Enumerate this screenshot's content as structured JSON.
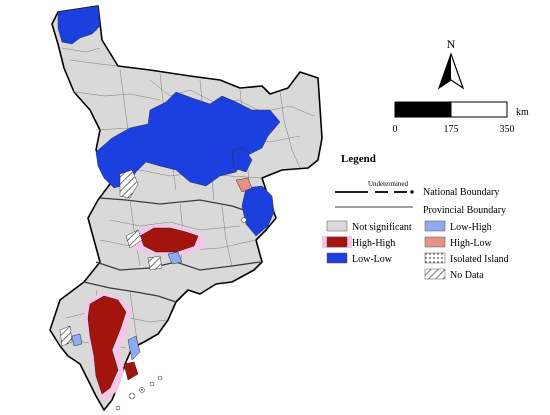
{
  "north_arrow": {
    "label": "N"
  },
  "scale_bar": {
    "unit": "km",
    "ticks": [
      "0",
      "175",
      "350"
    ]
  },
  "legend": {
    "title": "Legend",
    "boundary_note": "Undetermined",
    "national_boundary": "National Boundary",
    "provincial_boundary": "Provincial Boundary",
    "categories": [
      {
        "label": "Not significant",
        "color": "#d9d9d9",
        "pattern": "solid"
      },
      {
        "label": "Low-High",
        "color": "#8fa9f2",
        "pattern": "solid"
      },
      {
        "label": "High-High",
        "color": "#a3150c",
        "pattern": "solid"
      },
      {
        "label": "High-Low",
        "color": "#e6918a",
        "pattern": "solid"
      },
      {
        "label": "Low-Low",
        "color": "#1c3fe0",
        "pattern": "solid"
      },
      {
        "label": "Isolated Island",
        "color": "#ffffff",
        "pattern": "dots"
      },
      {
        "label": "No Data",
        "color": "#ffffff",
        "pattern": "hatch"
      }
    ]
  },
  "colors": {
    "not_significant": "#d9d9d9",
    "high_high": "#a3150c",
    "high_high_halo": "#f6c6e6",
    "low_low": "#1c3fe0",
    "low_high": "#8fa9f2",
    "high_low": "#e6918a",
    "boundary": "#000000",
    "internal_boundary": "#6b6b6b"
  }
}
